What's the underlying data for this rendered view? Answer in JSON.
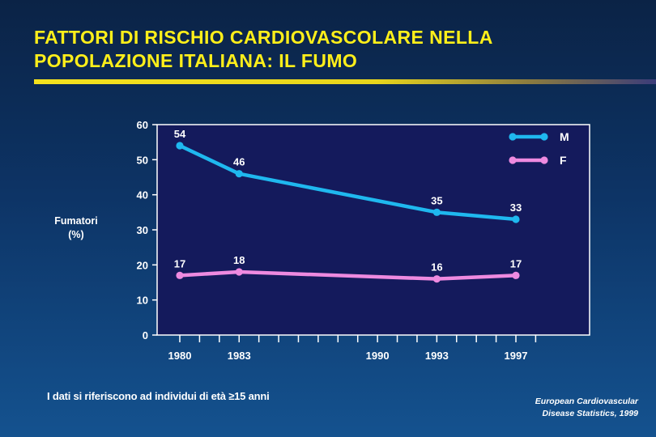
{
  "title_lines": [
    "FATTORI DI RISCHIO CARDIOVASCOLARE NELLA",
    "POPOLAZIONE ITALIANA: IL FUMO"
  ],
  "ylabel_lines": [
    "Fumatori",
    "(%)"
  ],
  "footnote": "I dati si riferiscono ad individui di età ≥15 anni",
  "source_lines": [
    "European Cardiovascular",
    "Disease Statistics, 1999"
  ],
  "colors": {
    "title": "#ffef1a",
    "plot_background": "#141a5c",
    "series_M": "#1fb8ef",
    "series_F": "#ee8ae0"
  },
  "chart_data": {
    "type": "line",
    "ylim": [
      0,
      60
    ],
    "yticks": [
      0,
      10,
      20,
      30,
      40,
      50,
      60
    ],
    "xlim": [
      1979,
      1998
    ],
    "x_tick_labels": [
      1980,
      1983,
      1990,
      1993,
      1997
    ],
    "legend_position": "top-right",
    "grid": false,
    "series": [
      {
        "name": "M",
        "color": "#1fb8ef",
        "points": [
          {
            "x": 1980,
            "y": 54
          },
          {
            "x": 1983,
            "y": 46
          },
          {
            "x": 1993,
            "y": 35
          },
          {
            "x": 1997,
            "y": 33
          }
        ]
      },
      {
        "name": "F",
        "color": "#ee8ae0",
        "points": [
          {
            "x": 1980,
            "y": 17
          },
          {
            "x": 1983,
            "y": 18
          },
          {
            "x": 1993,
            "y": 16
          },
          {
            "x": 1997,
            "y": 17
          }
        ]
      }
    ]
  }
}
